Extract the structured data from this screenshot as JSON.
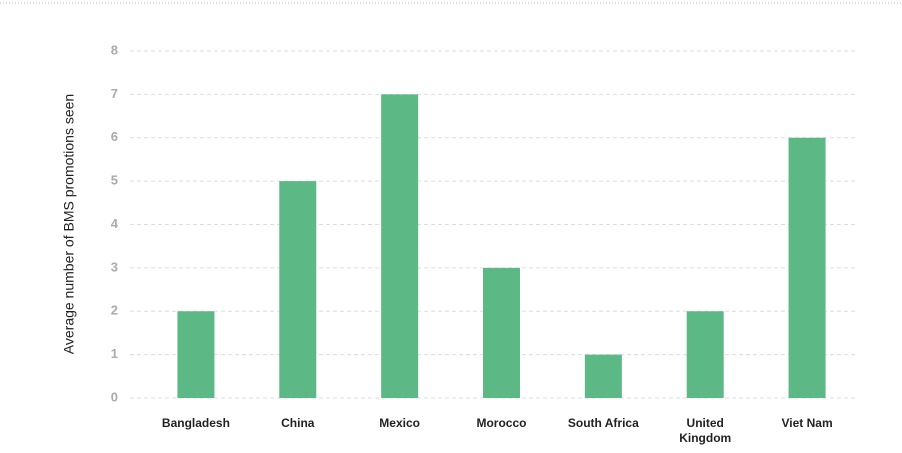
{
  "chart_data": {
    "type": "bar",
    "y_label": "Average number of BMS promotions seen",
    "categories": [
      "Bangladesh",
      "China",
      "Mexico",
      "Morocco",
      "South Africa",
      "United Kingdom",
      "Viet Nam"
    ],
    "values": [
      2,
      5,
      7,
      3,
      1,
      2,
      6
    ],
    "color": "#5cb985",
    "ylim": [
      0,
      8
    ],
    "yticks": [
      0,
      1,
      2,
      3,
      4,
      5,
      6,
      7,
      8
    ],
    "grid": true
  }
}
